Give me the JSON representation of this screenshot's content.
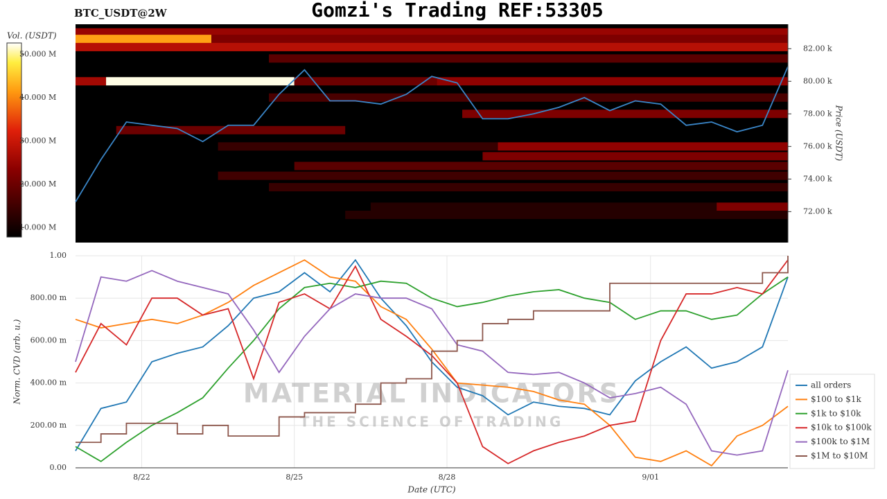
{
  "chart_data": [
    {
      "type": "heatmap",
      "title": "Gomzi's Trading REF:53305",
      "subtitle": "BTC_USDT@2W",
      "ylabel": "Price (USDT)",
      "xlim": [
        20.7,
        34.7
      ],
      "ylim": [
        70100,
        83500
      ],
      "yticks": [
        {
          "value": 72000,
          "label": "72.00 k"
        },
        {
          "value": 74000,
          "label": "74.00 k"
        },
        {
          "value": 76000,
          "label": "76.00 k"
        },
        {
          "value": 78000,
          "label": "78.00 k"
        },
        {
          "value": 80000,
          "label": "80.00 k"
        },
        {
          "value": 82000,
          "label": "82.00 k"
        }
      ],
      "colorbar_label": "Vol. (USDT)",
      "clim": [
        7.8,
        52.6
      ],
      "cticks": [
        {
          "value": 10,
          "label": "10.000 M"
        },
        {
          "value": 20,
          "label": "20.000 M"
        },
        {
          "value": 30,
          "label": "30.000 M"
        },
        {
          "value": 40,
          "label": "40.000 M"
        },
        {
          "value": 50,
          "label": "50.000 M"
        }
      ],
      "cells": [
        {
          "price": 83000,
          "start": 20.7,
          "end": 34.7,
          "volume": 25
        },
        {
          "price": 82600,
          "start": 20.7,
          "end": 23.37,
          "volume": 42
        },
        {
          "price": 82600,
          "start": 23.37,
          "end": 34.7,
          "volume": 22
        },
        {
          "price": 82100,
          "start": 20.7,
          "end": 34.7,
          "volume": 28
        },
        {
          "price": 81400,
          "start": 24.5,
          "end": 34.7,
          "volume": 18
        },
        {
          "price": 80000,
          "start": 20.7,
          "end": 21.3,
          "volume": 26
        },
        {
          "price": 80000,
          "start": 21.3,
          "end": 25.0,
          "volume": 52
        },
        {
          "price": 80000,
          "start": 25.0,
          "end": 27.8,
          "volume": 20
        },
        {
          "price": 80000,
          "start": 27.8,
          "end": 34.7,
          "volume": 24
        },
        {
          "price": 79000,
          "start": 24.5,
          "end": 34.7,
          "volume": 16
        },
        {
          "price": 78000,
          "start": 28.3,
          "end": 34.7,
          "volume": 22
        },
        {
          "price": 77000,
          "start": 21.5,
          "end": 26.0,
          "volume": 20
        },
        {
          "price": 76000,
          "start": 23.5,
          "end": 29.0,
          "volume": 14
        },
        {
          "price": 76000,
          "start": 29.0,
          "end": 34.7,
          "volume": 24
        },
        {
          "price": 75400,
          "start": 28.7,
          "end": 34.7,
          "volume": 22
        },
        {
          "price": 74800,
          "start": 25.0,
          "end": 34.7,
          "volume": 18
        },
        {
          "price": 74200,
          "start": 23.5,
          "end": 34.7,
          "volume": 15
        },
        {
          "price": 73500,
          "start": 24.5,
          "end": 34.7,
          "volume": 14
        },
        {
          "price": 72300,
          "start": 26.5,
          "end": 33.3,
          "volume": 12
        },
        {
          "price": 72300,
          "start": 33.3,
          "end": 34.7,
          "volume": 22
        },
        {
          "price": 71800,
          "start": 26.0,
          "end": 34.7,
          "volume": 12
        }
      ],
      "x": [
        20.7,
        21.2,
        21.7,
        22.2,
        22.7,
        23.2,
        23.7,
        24.2,
        24.7,
        25.2,
        25.7,
        26.2,
        26.7,
        27.2,
        27.7,
        28.2,
        28.7,
        29.2,
        29.7,
        30.2,
        30.7,
        31.2,
        31.7,
        32.2,
        32.7,
        33.2,
        33.7,
        34.2,
        34.7
      ],
      "price": {
        "color": "#3a86c8",
        "values": [
          72600,
          75200,
          77500,
          77300,
          77100,
          76300,
          77300,
          77300,
          79200,
          80700,
          78800,
          78800,
          78600,
          79200,
          80300,
          79900,
          77700,
          77700,
          78000,
          78400,
          79000,
          78200,
          78800,
          78600,
          77300,
          77500,
          76900,
          77300,
          80900
        ]
      }
    },
    {
      "type": "line",
      "ylabel": "Norm. CVD (arb. u.)",
      "xlabel": "Date (UTC)",
      "watermark": [
        "MATERIAL INDICATORS",
        "THE SCIENCE OF TRADING"
      ],
      "xlim": [
        20.7,
        34.7
      ],
      "ylim": [
        0,
        1
      ],
      "xticks": [
        {
          "value": 22,
          "label": "8/22"
        },
        {
          "value": 25,
          "label": "8/25"
        },
        {
          "value": 28,
          "label": "8/28"
        },
        {
          "value": 32,
          "label": "9/01"
        }
      ],
      "yticks": [
        {
          "value": 0,
          "label": "0.00"
        },
        {
          "value": 0.2,
          "label": "200.00 m"
        },
        {
          "value": 0.4,
          "label": "400.00 m"
        },
        {
          "value": 0.6,
          "label": "600.00 m"
        },
        {
          "value": 0.8,
          "label": "800.00 m"
        },
        {
          "value": 1,
          "label": "1.00"
        }
      ],
      "grid": true,
      "x": [
        20.7,
        21.2,
        21.7,
        22.2,
        22.7,
        23.2,
        23.7,
        24.2,
        24.7,
        25.2,
        25.7,
        26.2,
        26.7,
        27.2,
        27.7,
        28.2,
        28.7,
        29.2,
        29.7,
        30.2,
        30.7,
        31.2,
        31.7,
        32.2,
        32.7,
        33.2,
        33.7,
        34.2,
        34.7
      ],
      "series": [
        {
          "name": "all orders",
          "color": "#1f77b4",
          "values": [
            0.08,
            0.28,
            0.31,
            0.5,
            0.54,
            0.57,
            0.67,
            0.8,
            0.83,
            0.92,
            0.83,
            0.98,
            0.8,
            0.67,
            0.5,
            0.38,
            0.34,
            0.25,
            0.31,
            0.29,
            0.28,
            0.25,
            0.41,
            0.5,
            0.57,
            0.47,
            0.5,
            0.57,
            0.9
          ]
        },
        {
          "name": "$100 to $1k",
          "color": "#ff7f0e",
          "values": [
            0.7,
            0.66,
            0.68,
            0.7,
            0.68,
            0.72,
            0.78,
            0.86,
            0.92,
            0.98,
            0.9,
            0.88,
            0.76,
            0.7,
            0.56,
            0.4,
            0.39,
            0.38,
            0.36,
            0.32,
            0.3,
            0.2,
            0.05,
            0.03,
            0.08,
            0.01,
            0.15,
            0.2,
            0.29
          ]
        },
        {
          "name": "$1k to $10k",
          "color": "#2ca02c",
          "values": [
            0.1,
            0.03,
            0.12,
            0.2,
            0.26,
            0.33,
            0.47,
            0.6,
            0.75,
            0.85,
            0.87,
            0.85,
            0.88,
            0.87,
            0.8,
            0.76,
            0.78,
            0.81,
            0.83,
            0.84,
            0.8,
            0.78,
            0.7,
            0.74,
            0.74,
            0.7,
            0.72,
            0.82,
            0.9
          ]
        },
        {
          "name": "$10k to $100k",
          "color": "#d62728",
          "values": [
            0.45,
            0.68,
            0.58,
            0.8,
            0.8,
            0.72,
            0.75,
            0.42,
            0.78,
            0.82,
            0.75,
            0.95,
            0.7,
            0.62,
            0.53,
            0.4,
            0.1,
            0.02,
            0.08,
            0.12,
            0.15,
            0.2,
            0.22,
            0.6,
            0.82,
            0.82,
            0.85,
            0.82,
            0.98
          ]
        },
        {
          "name": "$100k to $1M",
          "color": "#9467bd",
          "values": [
            0.5,
            0.9,
            0.88,
            0.93,
            0.88,
            0.85,
            0.82,
            0.65,
            0.45,
            0.62,
            0.75,
            0.82,
            0.8,
            0.8,
            0.75,
            0.58,
            0.55,
            0.45,
            0.44,
            0.45,
            0.4,
            0.33,
            0.35,
            0.38,
            0.3,
            0.08,
            0.06,
            0.08,
            0.46
          ]
        },
        {
          "name": "$1M to $10M",
          "color": "#8c564b",
          "step": true,
          "values": [
            0.12,
            0.16,
            0.21,
            0.21,
            0.16,
            0.2,
            0.15,
            0.15,
            0.24,
            0.26,
            0.26,
            0.3,
            0.4,
            0.42,
            0.55,
            0.6,
            0.68,
            0.7,
            0.74,
            0.74,
            0.74,
            0.87,
            0.87,
            0.87,
            0.87,
            0.87,
            0.87,
            0.92,
            1.0
          ]
        }
      ]
    }
  ]
}
